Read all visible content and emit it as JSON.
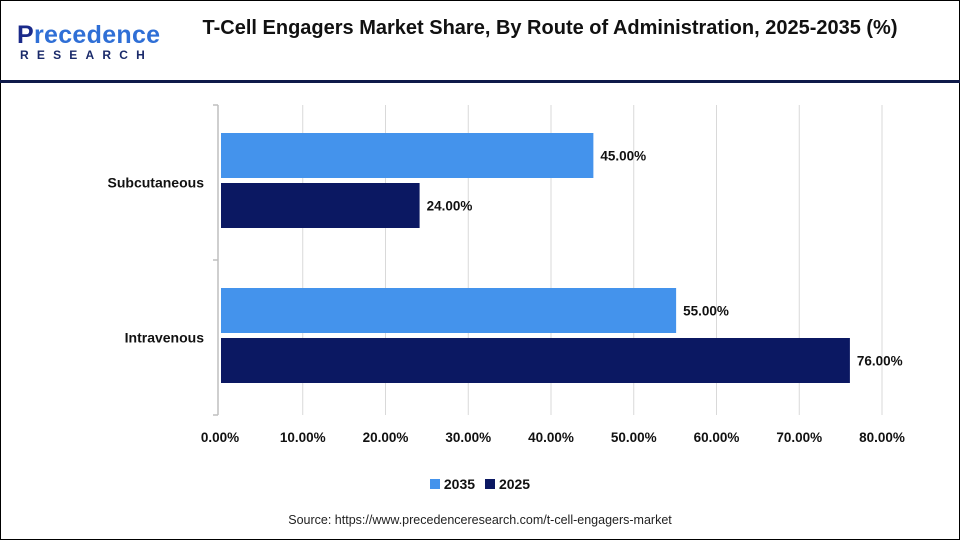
{
  "header": {
    "logo_text": "Precedence RESEARCH",
    "title": "T-Cell Engagers Market Share, By Route of Administration, 2025-2035 (%)"
  },
  "chart_data": {
    "type": "bar",
    "orientation": "horizontal",
    "title": "T-Cell Engagers Market Share, By Route of Administration, 2025-2035 (%)",
    "categories": [
      "Subcutaneous",
      "Intravenous"
    ],
    "series": [
      {
        "name": "2035",
        "values": [
          45.0,
          55.0
        ],
        "labels": [
          "45.00%",
          "55.00%"
        ],
        "color": "#4493EC"
      },
      {
        "name": "2025",
        "values": [
          24.0,
          76.0
        ],
        "labels": [
          "24.00%",
          "76.00%"
        ],
        "color": "#0B1862"
      }
    ],
    "xlim": [
      0,
      80
    ],
    "xticks": [
      "0.00%",
      "10.00%",
      "20.00%",
      "30.00%",
      "40.00%",
      "50.00%",
      "60.00%",
      "70.00%",
      "80.00%"
    ],
    "grid": true,
    "legend": "bottom"
  },
  "source": "Source: https://www.precedenceresearch.com/t-cell-engagers-market"
}
